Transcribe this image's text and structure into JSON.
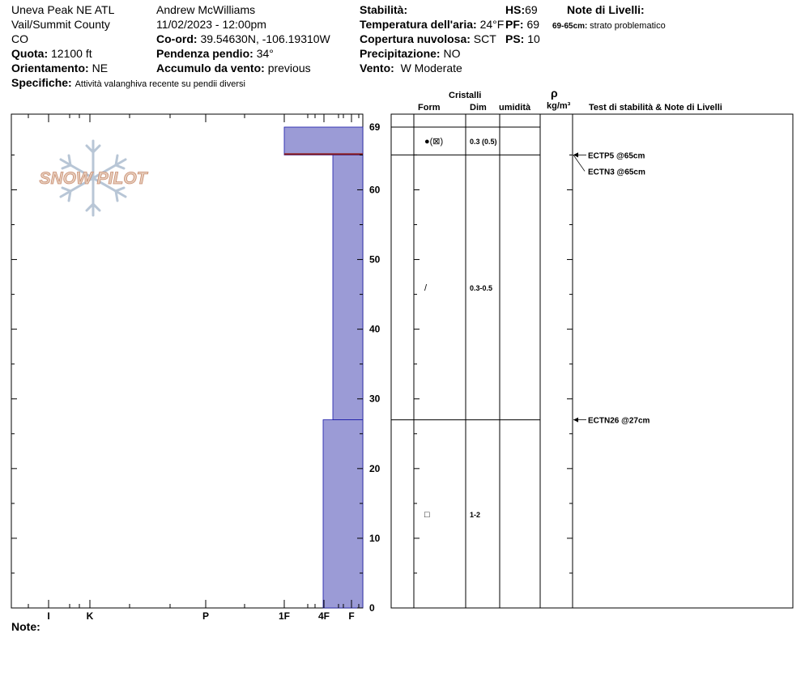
{
  "header": {
    "location": "Uneva Peak NE ATL",
    "region": "Vail/Summit County",
    "state": "CO",
    "elevation_label": "Quota:",
    "elevation_value": "12100 ft",
    "aspect_label": "Orientamento:",
    "aspect_value": "NE",
    "specifics_label": "Specifiche:",
    "specifics_value": "Attività valanghiva recente su pendii diversi",
    "observer": "Andrew McWilliams",
    "datetime": "11/02/2023 - 12:00pm",
    "coord_label": "Co-ord:",
    "coord_value": "39.54630N, -106.19310W",
    "slope_label": "Pendenza pendio:",
    "slope_value": "34°",
    "wind_loading_label": "Accumulo da vento:",
    "wind_loading_value": "previous",
    "stability_label": "Stabilità:",
    "air_temp_label": "Temperatura dell'aria:",
    "air_temp_value": "24°F",
    "sky_label": "Copertura nuvolosa:",
    "sky_value": "SCT",
    "precip_label": "Precipitazione:",
    "precip_value": "NO",
    "wind_label": "Vento:",
    "wind_value": "W Moderate",
    "hs_label": "HS:",
    "hs_value": "69",
    "pf_label": "PF:",
    "pf_value": "69",
    "ps_label": "PS:",
    "ps_value": "10",
    "layer_notes_title": "Note di Livelli:",
    "layer_note_range": "69-65cm:",
    "layer_note_text": "strato problematico"
  },
  "logo_text": "SNOW PILOT",
  "columns": {
    "crystals": "Cristalli",
    "form": "Form",
    "size": "Dim",
    "moisture": "umidità",
    "density_symbol": "ρ",
    "density_unit": "kg/m³",
    "tests": "Test di stabilità & Note di Livelli"
  },
  "notes_label": "Note:",
  "colors": {
    "hardness_fill": "#9b9bd6",
    "hardness_edge": "#1a1aa8",
    "problem_line": "#8b1a1a"
  },
  "chart_data": {
    "type": "bar",
    "y_unit": "cm",
    "ylim": [
      0,
      69
    ],
    "y_ticks": [
      0,
      10,
      20,
      30,
      40,
      50,
      60,
      69
    ],
    "hardness_scale": [
      "F",
      "4F",
      "1F",
      "P",
      "K",
      "I"
    ],
    "hardness_tick_labels": [
      "I",
      "K",
      "P",
      "1F",
      "4F",
      "F"
    ],
    "layers": [
      {
        "top": 69,
        "bottom": 65,
        "hardness": "1F"
      },
      {
        "top": 65,
        "bottom": 27,
        "hardness": "F+"
      },
      {
        "top": 27,
        "bottom": 0,
        "hardness": "4F-"
      }
    ],
    "crystals": [
      {
        "height": 67,
        "form": "●(⊠)",
        "size": "0.3 (0.5)"
      },
      {
        "height": 46,
        "form": "/",
        "size": "0.3-0.5"
      },
      {
        "height": 13.5,
        "form": "□",
        "size": "1-2"
      }
    ],
    "tests": [
      {
        "depth": 65,
        "label": "ECTP5 @65cm"
      },
      {
        "depth": 65,
        "label": "ECTN3 @65cm"
      },
      {
        "depth": 27,
        "label": "ECTN26 @27cm"
      }
    ]
  }
}
